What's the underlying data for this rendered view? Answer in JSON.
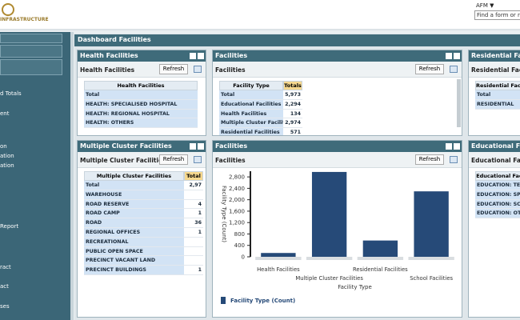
{
  "header": {
    "logo_text": "INFRASTRUCTURE",
    "user": "AFM ▼",
    "search_placeholder": "Find a form or repo"
  },
  "sidebar": {
    "items": [
      "d Totals",
      "ent",
      "on",
      "ation",
      "ation",
      "Report",
      "ract",
      "act",
      "ses"
    ]
  },
  "dashboard": {
    "title": "Dashboard Facilities",
    "refresh": "Refresh",
    "panels": [
      {
        "title": "Health Facilities",
        "subtitle": "Health Facilities",
        "columns": [
          "Health Facilities"
        ],
        "rows": [
          [
            "Total"
          ],
          [
            "HEALTH: SPECIALISED HOSPITAL"
          ],
          [
            "HEALTH: REGIONAL HOSPITAL"
          ],
          [
            "HEALTH: OTHERS"
          ]
        ]
      },
      {
        "title": "Facilities",
        "subtitle": "Facilities",
        "columns": [
          "Facility Type",
          "Totals"
        ],
        "rows": [
          [
            "Total",
            "5,973"
          ],
          [
            "Educational Facilities",
            "2,294"
          ],
          [
            "Health Facilities",
            "134"
          ],
          [
            "Multiple Cluster Facilities",
            "2,974"
          ],
          [
            "Residential Facilities",
            "571"
          ]
        ]
      },
      {
        "title": "Residential Facili",
        "subtitle": "Residential Facili",
        "columns": [
          "Residential Faciliti"
        ],
        "rows": [
          [
            "Total"
          ],
          [
            "RESIDENTIAL"
          ]
        ]
      },
      {
        "title": "Multiple Cluster Facilities",
        "subtitle": "Multiple Cluster Facilities",
        "columns": [
          "Multiple Cluster Facilities",
          "Total"
        ],
        "rows": [
          [
            "Total",
            "2,97"
          ],
          [
            "WAREHOUSE",
            ""
          ],
          [
            "ROAD RESERVE",
            "4"
          ],
          [
            "ROAD CAMP",
            "1"
          ],
          [
            "ROAD",
            "36"
          ],
          [
            "REGIONAL OFFICES",
            "1"
          ],
          [
            "RECREATIONAL",
            ""
          ],
          [
            "PUBLIC OPEN SPACE",
            ""
          ],
          [
            "PRECINCT VACANT LAND",
            ""
          ],
          [
            "PRECINCT BUILDINGS",
            "1"
          ]
        ]
      },
      {
        "title": "Educational Faci",
        "subtitle": "Educational Faci",
        "columns": [
          "Educational Fac"
        ],
        "rows": [
          [
            "EDUCATION: TERT"
          ],
          [
            "EDUCATION: SPEC"
          ],
          [
            "EDUCATION: SCHO"
          ],
          [
            "EDUCATION: OTHE"
          ]
        ]
      }
    ],
    "chart_panel": {
      "title": "Facilities",
      "subtitle": "Facilities"
    }
  },
  "chart_data": {
    "type": "bar",
    "categories": [
      "Health Facilities",
      "Multiple Cluster Facilities",
      "Residential Facilities",
      "School Facilities"
    ],
    "series": [
      {
        "name": "Facility Type (Count)",
        "color": "#264a78",
        "values": [
          134,
          2974,
          571,
          2294
        ]
      }
    ],
    "x_label": "Facility Type",
    "y_label": "Facility Type (Count)",
    "ylim": [
      0,
      3000
    ],
    "yticks": [
      0,
      {
        "value": 400,
        "label": "400"
      },
      {
        "value": 800,
        "label": "800"
      },
      {
        "value": 1200,
        "label": "1,200"
      },
      {
        "value": 1600,
        "label": "1,600"
      },
      {
        "value": 2000,
        "label": "2,000"
      },
      {
        "value": 2400,
        "label": "2,400"
      },
      {
        "value": 2800,
        "label": "2,800"
      }
    ],
    "legend": "bottom-left"
  }
}
